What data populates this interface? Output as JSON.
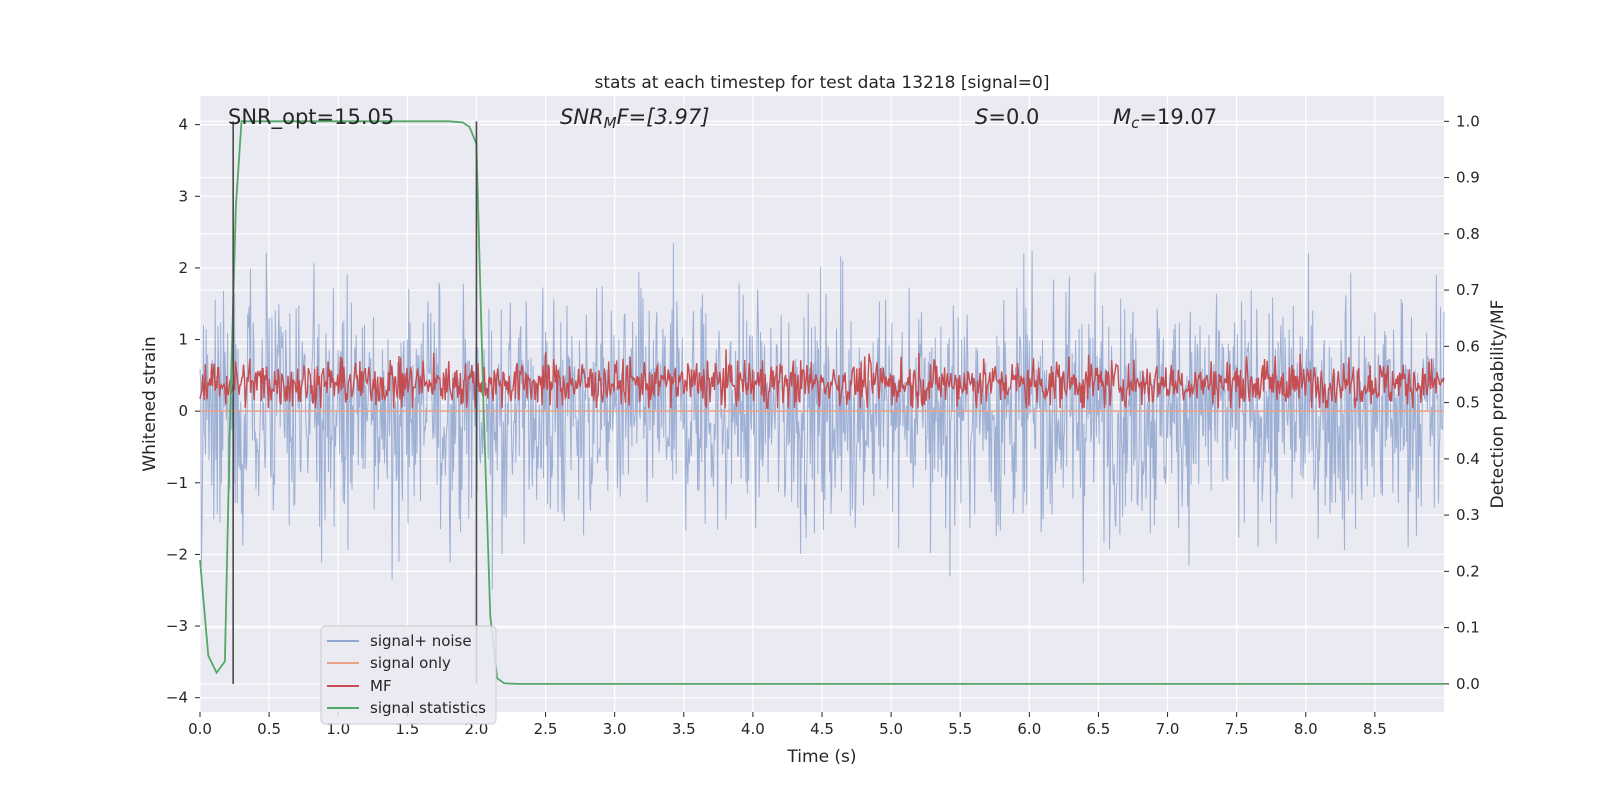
{
  "chart_data": {
    "type": "line",
    "title": "stats at each timestep for test data 13218 [signal=0]",
    "xlabel": "Time (s)",
    "ylabel_left": "Whitened strain",
    "ylabel_right": "Detection probability/MF",
    "xlim": [
      0,
      9.0
    ],
    "ylim_left": [
      -4.2,
      4.4
    ],
    "ylim_right": [
      -0.05,
      1.045
    ],
    "x_ticks": [
      "0.0",
      "0.5",
      "1.0",
      "1.5",
      "2.0",
      "2.5",
      "3.0",
      "3.5",
      "4.0",
      "4.5",
      "5.0",
      "5.5",
      "6.0",
      "6.5",
      "7.0",
      "7.5",
      "8.0",
      "8.5"
    ],
    "y_ticks_left": [
      "4",
      "3",
      "2",
      "1",
      "0",
      "−1",
      "−2",
      "−3",
      "−4"
    ],
    "y_ticks_right": [
      "1.0",
      "0.9",
      "0.8",
      "0.7",
      "0.6",
      "0.5",
      "0.4",
      "0.3",
      "0.2",
      "0.1",
      "0.0"
    ],
    "grid": true,
    "legend_position": "lower-left",
    "annotations": {
      "snr_opt": "SNR_opt=15.05",
      "snr_mf_prefix": "SNR",
      "snr_mf_sub": "M",
      "snr_mf_suffix": "F=[3.97]",
      "s_symbol": "S",
      "s_value": "=0.0",
      "mc_symbol": "M",
      "mc_sub": "c",
      "mc_value": "=19.07"
    },
    "vertical_markers_x": [
      0.24,
      2.0
    ],
    "series": [
      {
        "name": "signal+ noise",
        "color": "#8fa6cf",
        "kind": "noise",
        "band": [
          -2.6,
          2.6
        ],
        "peaks": [
          3.8,
          -3.8
        ]
      },
      {
        "name": "signal only",
        "color": "#e8a183",
        "kind": "flat",
        "value": 0
      },
      {
        "name": "MF",
        "color": "#c44e52",
        "kind": "mf",
        "band_right": [
          0.5,
          0.57
        ],
        "peaks_right": [
          0.62,
          0.49
        ]
      },
      {
        "name": "signal statistics",
        "color": "#55a868",
        "x": [
          0.0,
          0.06,
          0.12,
          0.18,
          0.22,
          0.26,
          0.3,
          0.35,
          0.5,
          1.0,
          1.5,
          1.8,
          1.9,
          1.95,
          2.0,
          2.05,
          2.1,
          2.15,
          2.2,
          2.3,
          3.0,
          5.0,
          7.0,
          9.0
        ],
        "y": [
          0.22,
          0.05,
          0.02,
          0.04,
          0.5,
          0.85,
          1.0,
          1.0,
          1.0,
          1.0,
          1.0,
          1.0,
          0.998,
          0.99,
          0.96,
          0.5,
          0.12,
          0.01,
          0.001,
          0.0,
          0.0,
          0.0,
          0.0,
          0.0
        ]
      }
    ]
  }
}
